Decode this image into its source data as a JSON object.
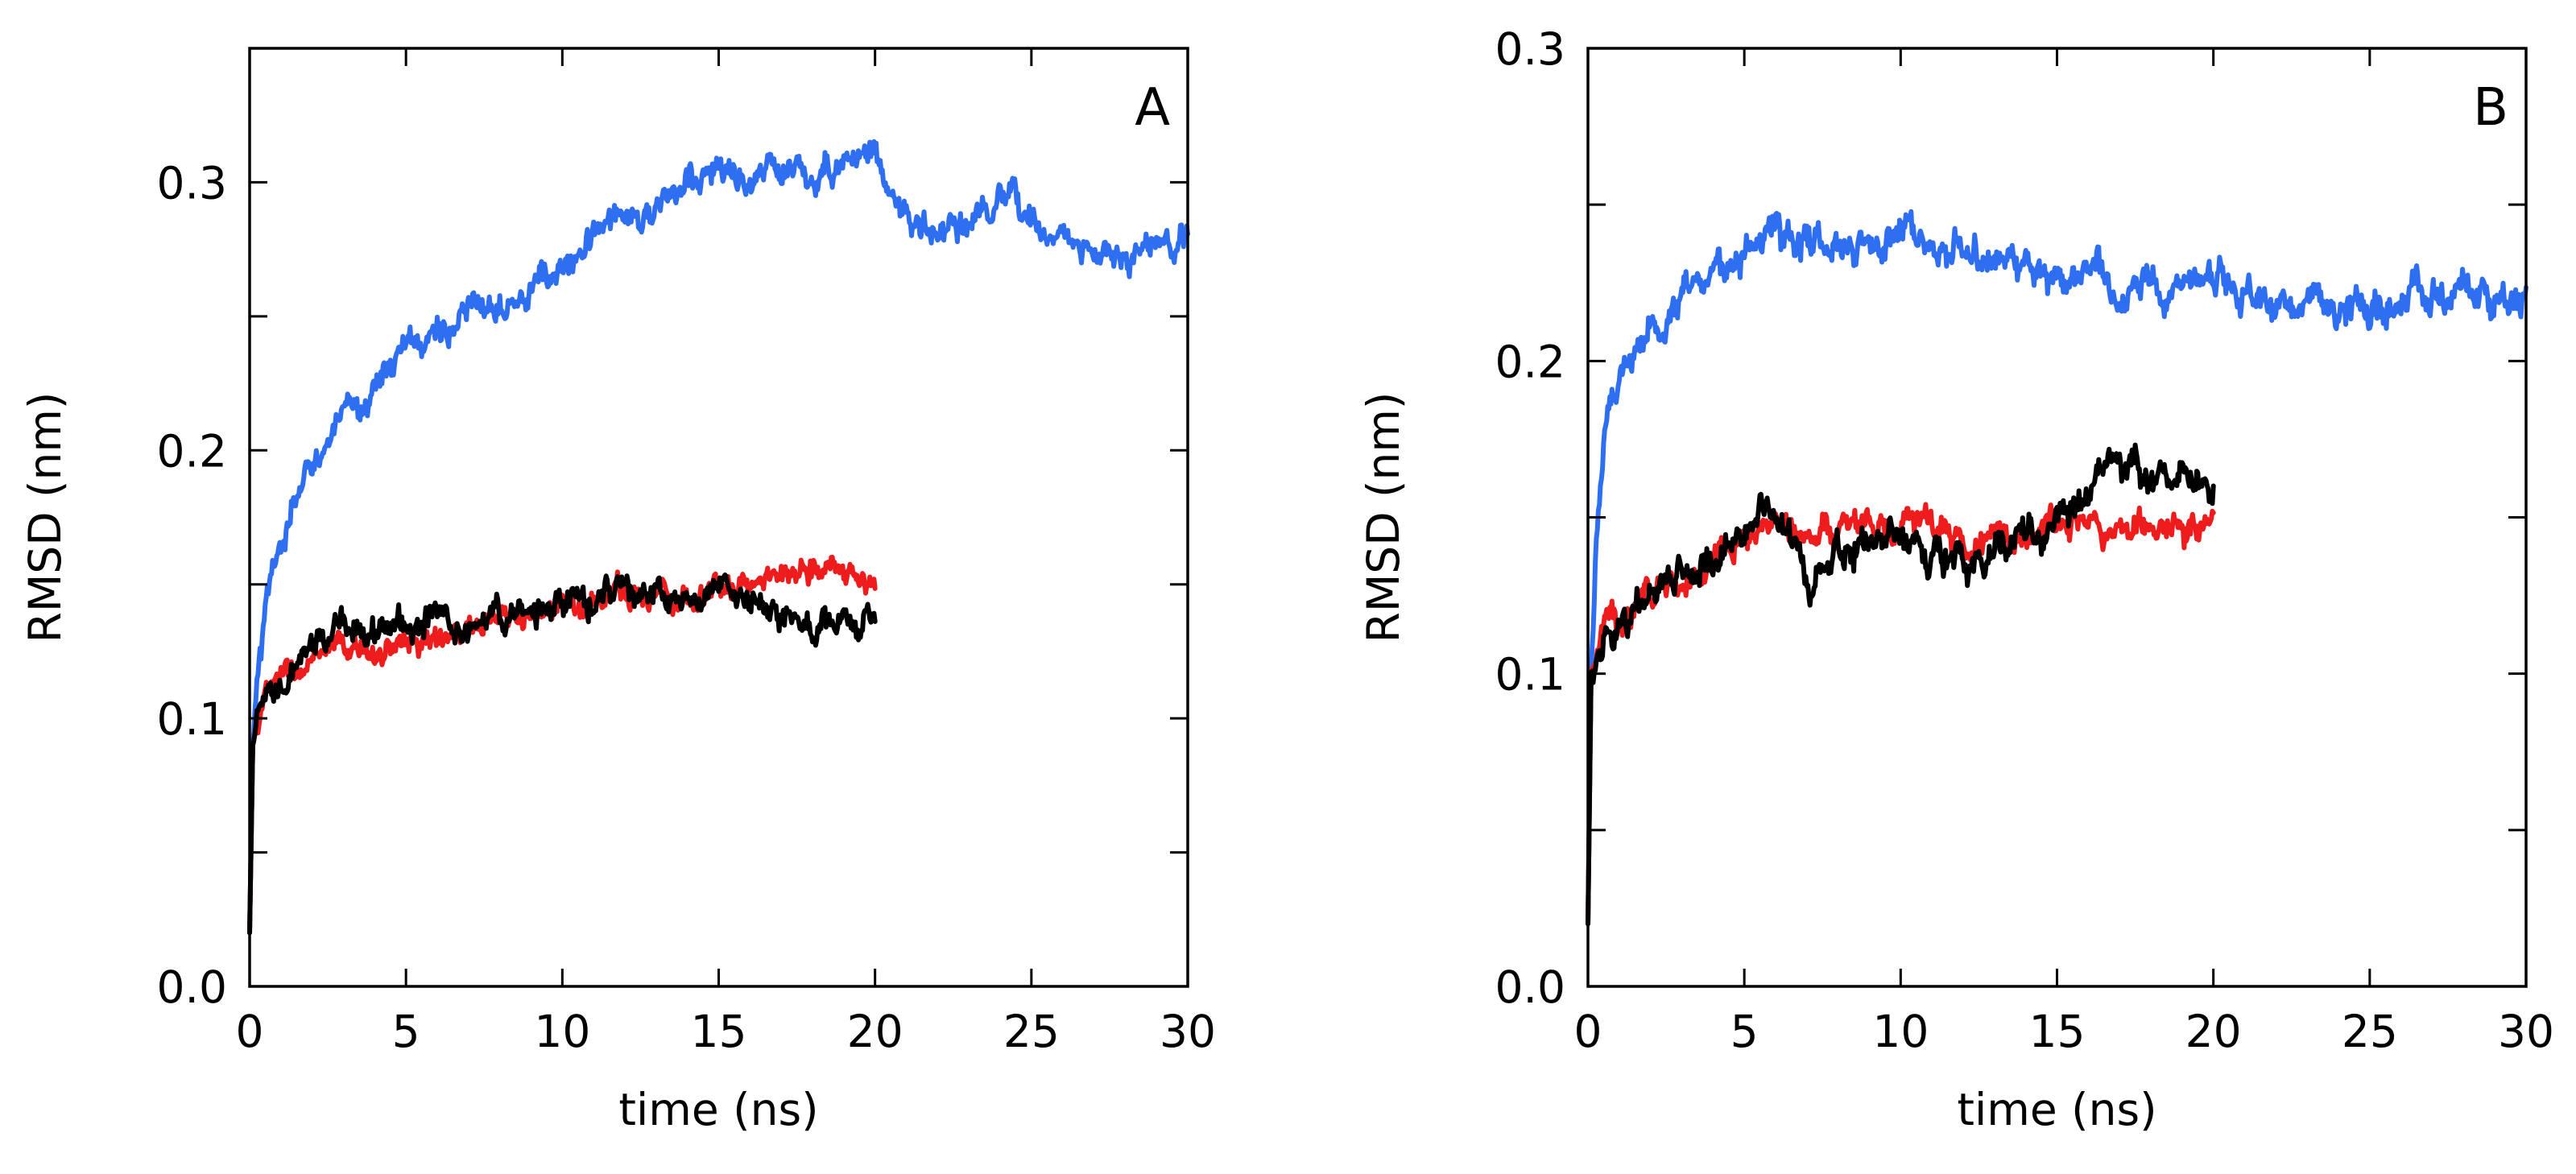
{
  "chart_data": [
    {
      "type": "line",
      "panel_label": "A",
      "xlabel": "time (ns)",
      "ylabel": "RMSD (nm)",
      "xlim": [
        0,
        30
      ],
      "ylim": [
        0,
        0.35
      ],
      "xticks": [
        0,
        5,
        10,
        15,
        20,
        25,
        30
      ],
      "xtick_labels": [
        "0",
        "5",
        "10",
        "15",
        "20",
        "25",
        "30"
      ],
      "yticks": [
        0.0,
        0.05,
        0.1,
        0.15,
        0.2,
        0.25,
        0.3
      ],
      "ytick_labels": [
        "0.0",
        "",
        "0.1",
        "",
        "0.2",
        "",
        "0.3"
      ],
      "series": [
        {
          "name": "blue",
          "color": "#2e6ff2",
          "noise": 0.006,
          "x": [
            0,
            0.1,
            0.3,
            0.6,
            1,
            1.5,
            2,
            2.5,
            3,
            3.5,
            4,
            5,
            6,
            7,
            8,
            9,
            10,
            11,
            12,
            13,
            14,
            15,
            16,
            17,
            18,
            19,
            20,
            21,
            22,
            23,
            24,
            25,
            26,
            27,
            28,
            29,
            30
          ],
          "y": [
            0.02,
            0.09,
            0.12,
            0.145,
            0.165,
            0.18,
            0.195,
            0.205,
            0.21,
            0.215,
            0.225,
            0.238,
            0.245,
            0.25,
            0.258,
            0.262,
            0.265,
            0.28,
            0.29,
            0.288,
            0.3,
            0.305,
            0.3,
            0.305,
            0.3,
            0.31,
            0.312,
            0.285,
            0.28,
            0.285,
            0.29,
            0.288,
            0.28,
            0.272,
            0.27,
            0.278,
            0.275
          ]
        },
        {
          "name": "red",
          "color": "#ee1c1c",
          "noise": 0.005,
          "x": [
            0,
            0.1,
            0.3,
            0.6,
            1,
            1.5,
            2,
            3,
            4,
            5,
            6,
            7,
            8,
            9,
            10,
            11,
            12,
            13,
            14,
            15,
            16,
            17,
            18,
            19,
            20
          ],
          "y": [
            0.02,
            0.09,
            0.1,
            0.11,
            0.115,
            0.118,
            0.12,
            0.125,
            0.125,
            0.128,
            0.13,
            0.132,
            0.135,
            0.138,
            0.14,
            0.145,
            0.147,
            0.148,
            0.145,
            0.15,
            0.148,
            0.155,
            0.158,
            0.155,
            0.148
          ]
        },
        {
          "name": "black",
          "color": "#000000",
          "noise": 0.006,
          "x": [
            0,
            0.1,
            0.3,
            0.6,
            1,
            1.5,
            2,
            3,
            4,
            5,
            6,
            7,
            8,
            9,
            10,
            11,
            12,
            13,
            14,
            15,
            16,
            17,
            18,
            19,
            20
          ],
          "y": [
            0.02,
            0.09,
            0.1,
            0.105,
            0.11,
            0.118,
            0.125,
            0.135,
            0.135,
            0.135,
            0.138,
            0.135,
            0.138,
            0.14,
            0.142,
            0.145,
            0.148,
            0.145,
            0.14,
            0.148,
            0.145,
            0.14,
            0.132,
            0.135,
            0.135
          ]
        }
      ]
    },
    {
      "type": "line",
      "panel_label": "B",
      "xlabel": "time (ns)",
      "ylabel": "RMSD (nm)",
      "xlim": [
        0,
        30
      ],
      "ylim": [
        0,
        0.3
      ],
      "xticks": [
        0,
        5,
        10,
        15,
        20,
        25,
        30
      ],
      "xtick_labels": [
        "0",
        "5",
        "10",
        "15",
        "20",
        "25",
        "30"
      ],
      "yticks": [
        0.0,
        0.05,
        0.1,
        0.15,
        0.2,
        0.25,
        0.3
      ],
      "ytick_labels": [
        "0.0",
        "",
        "0.1",
        "",
        "0.2",
        "",
        "0.3"
      ],
      "series": [
        {
          "name": "blue",
          "color": "#2e6ff2",
          "noise": 0.006,
          "x": [
            0,
            0.1,
            0.3,
            0.6,
            1,
            1.5,
            2,
            2.5,
            3,
            4,
            5,
            6,
            7,
            8,
            9,
            10,
            11,
            12,
            13,
            14,
            15,
            16,
            17,
            18,
            19,
            20,
            21,
            22,
            23,
            24,
            25,
            26,
            27,
            28,
            29,
            30
          ],
          "y": [
            0.02,
            0.1,
            0.15,
            0.18,
            0.195,
            0.205,
            0.21,
            0.215,
            0.22,
            0.228,
            0.235,
            0.24,
            0.24,
            0.24,
            0.238,
            0.242,
            0.24,
            0.235,
            0.232,
            0.23,
            0.228,
            0.23,
            0.225,
            0.225,
            0.225,
            0.225,
            0.225,
            0.215,
            0.22,
            0.218,
            0.22,
            0.22,
            0.218,
            0.222,
            0.222,
            0.222
          ]
        },
        {
          "name": "red",
          "color": "#ee1c1c",
          "noise": 0.005,
          "x": [
            0,
            0.1,
            0.3,
            0.6,
            1,
            1.5,
            2,
            3,
            4,
            5,
            6,
            7,
            8,
            9,
            10,
            11,
            12,
            13,
            14,
            15,
            16,
            17,
            18,
            19,
            20
          ],
          "y": [
            0.02,
            0.1,
            0.11,
            0.115,
            0.118,
            0.122,
            0.127,
            0.13,
            0.135,
            0.145,
            0.15,
            0.148,
            0.145,
            0.148,
            0.145,
            0.148,
            0.14,
            0.142,
            0.145,
            0.15,
            0.148,
            0.145,
            0.15,
            0.148,
            0.147
          ]
        },
        {
          "name": "black",
          "color": "#000000",
          "noise": 0.006,
          "x": [
            0,
            0.1,
            0.3,
            0.6,
            1,
            1.5,
            2,
            3,
            4,
            5,
            6,
            7,
            8,
            9,
            10,
            11,
            12,
            13,
            14,
            15,
            16,
            17,
            18,
            19,
            20
          ],
          "y": [
            0.02,
            0.1,
            0.105,
            0.11,
            0.115,
            0.12,
            0.125,
            0.13,
            0.135,
            0.148,
            0.155,
            0.13,
            0.14,
            0.142,
            0.145,
            0.14,
            0.135,
            0.14,
            0.145,
            0.15,
            0.16,
            0.17,
            0.16,
            0.162,
            0.155
          ]
        }
      ]
    }
  ]
}
